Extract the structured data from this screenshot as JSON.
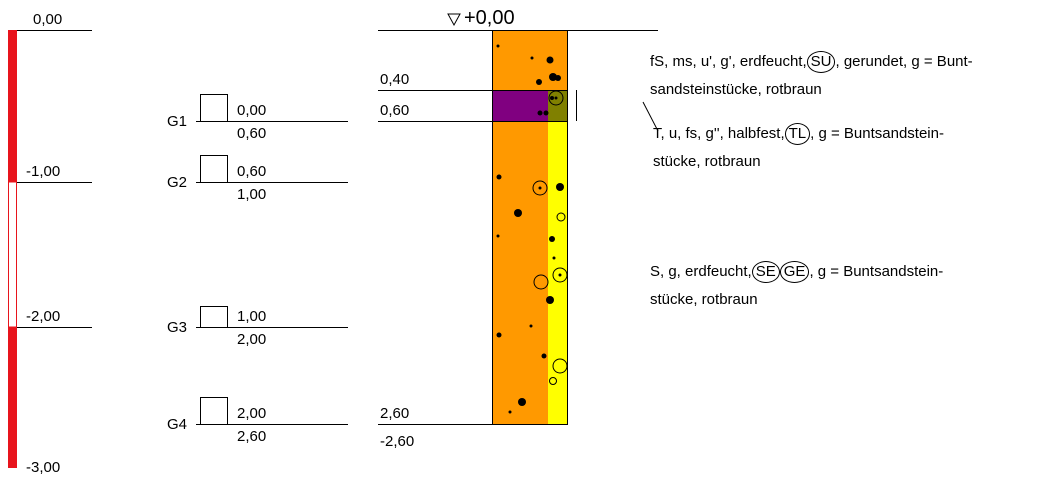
{
  "scale": {
    "ticks": [
      "0,00",
      "-1,00",
      "-2,00",
      "-3,00"
    ],
    "colors": {
      "solid": "#e8141c",
      "outline": "#e8141c"
    }
  },
  "samples": [
    {
      "name": "G1",
      "top": "0,00",
      "bottom": "0,60"
    },
    {
      "name": "G2",
      "top": "0,60",
      "bottom": "1,00"
    },
    {
      "name": "G3",
      "top": "1,00",
      "bottom": "2,00"
    },
    {
      "name": "G4",
      "top": "2,00",
      "bottom": "2,60"
    }
  ],
  "profile": {
    "head": "+0,00",
    "head_icon": "water-level-triangle-icon",
    "depth_labels": [
      "0,40",
      "0,60",
      "2,60",
      "-2,60"
    ],
    "colors": {
      "orange": "#ff9900",
      "purple": "#800080",
      "olive": "#808000",
      "yellow": "#ffff00"
    }
  },
  "layers": [
    {
      "pre": "fS, ms, u', g', erdfeucht,",
      "symbols": [
        "SU"
      ],
      "post": ", gerundet, g = Bunt-",
      "line2": "sandsteinstücke, rotbraun"
    },
    {
      "pre": "T, u, fs, g'', halbfest,",
      "symbols": [
        "TL"
      ],
      "post": ", g = Buntsandstein-",
      "line2": "stücke, rotbraun"
    },
    {
      "pre": "S, g, erdfeucht,",
      "symbols": [
        "SE",
        "GE"
      ],
      "post": ", g = Buntsandstein-",
      "line2": "stücke, rotbraun"
    }
  ]
}
